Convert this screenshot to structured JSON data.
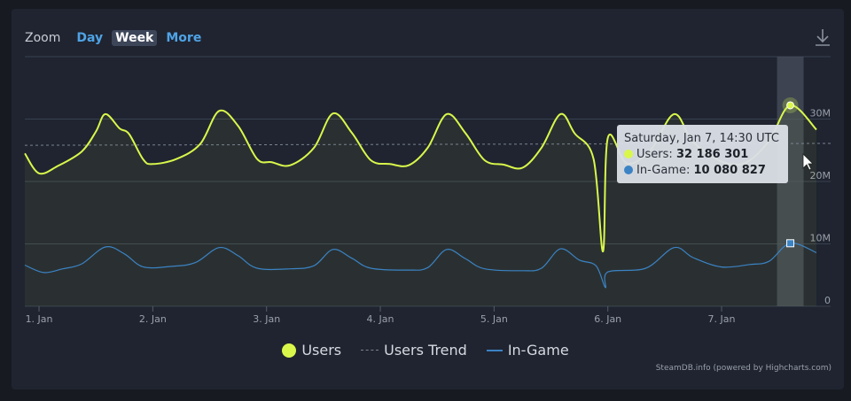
{
  "zoom": {
    "label": "Zoom",
    "buttons": [
      {
        "label": "Day",
        "active": false
      },
      {
        "label": "Week",
        "active": true
      },
      {
        "label": "More",
        "active": false
      }
    ]
  },
  "icons": {
    "download": "download-icon",
    "cursor": "mouse-pointer-icon"
  },
  "credits": "SteamDB.info (powered by Highcharts.com)",
  "tooltip": {
    "title": "Saturday, Jan 7, 14:30 UTC",
    "users_label": "Users:",
    "users_value": "32 186 301",
    "ingame_label": "In-Game:",
    "ingame_value": "10 080 827"
  },
  "colors": {
    "users": "#d9f74b",
    "ingame": "#3b83c5",
    "trend": "#7b8290"
  },
  "chart_data": {
    "type": "line",
    "x_axis": {
      "type": "datetime",
      "range": [
        "Dec 31 21:00",
        "Jan 7 23:00"
      ],
      "tick_labels": [
        "1. Jan",
        "2. Jan",
        "3. Jan",
        "4. Jan",
        "5. Jan",
        "6. Jan",
        "7. Jan"
      ]
    },
    "y_axis": {
      "min": 0,
      "max": 40000000,
      "ticks": [
        0,
        10000000,
        20000000,
        30000000
      ],
      "tick_labels": [
        "0",
        "10M",
        "20M",
        "30M"
      ]
    },
    "grid": true,
    "legend_position": "bottom",
    "series": [
      {
        "name": "Users",
        "points": [
          [
            "Dec 31 21:00",
            24.5
          ],
          [
            "Jan 1 00:00",
            21.3
          ],
          [
            "Jan 1 04:00",
            22.5
          ],
          [
            "Jan 1 09:00",
            24.8
          ],
          [
            "Jan 1 12:00",
            28.0
          ],
          [
            "Jan 1 14:00",
            30.8
          ],
          [
            "Jan 1 17:00",
            28.5
          ],
          [
            "Jan 1 19:00",
            27.6
          ],
          [
            "Jan 1 22:00",
            23.5
          ],
          [
            "Jan 2 00:00",
            22.8
          ],
          [
            "Jan 2 05:00",
            23.6
          ],
          [
            "Jan 2 10:00",
            26.0
          ],
          [
            "Jan 2 14:00",
            31.3
          ],
          [
            "Jan 2 18:00",
            28.9
          ],
          [
            "Jan 2 22:00",
            23.6
          ],
          [
            "Jan 3 01:00",
            23.1
          ],
          [
            "Jan 3 05:00",
            22.6
          ],
          [
            "Jan 3 10:00",
            25.4
          ],
          [
            "Jan 3 14:00",
            30.9
          ],
          [
            "Jan 3 18:00",
            27.8
          ],
          [
            "Jan 3 22:00",
            23.4
          ],
          [
            "Jan 4 02:00",
            22.8
          ],
          [
            "Jan 4 06:00",
            22.6
          ],
          [
            "Jan 4 10:00",
            25.4
          ],
          [
            "Jan 4 14:00",
            30.8
          ],
          [
            "Jan 4 18:00",
            27.7
          ],
          [
            "Jan 4 22:00",
            23.4
          ],
          [
            "Jan 5 02:00",
            22.7
          ],
          [
            "Jan 5 06:00",
            22.2
          ],
          [
            "Jan 5 10:00",
            25.4
          ],
          [
            "Jan 5 14:00",
            30.8
          ],
          [
            "Jan 5 17:00",
            27.7
          ],
          [
            "Jan 5 21:00",
            23.6
          ],
          [
            "Jan 5 23:00",
            8.8
          ],
          [
            "Jan 6 00:00",
            27.0
          ],
          [
            "Jan 6 04:00",
            22.9
          ],
          [
            "Jan 6 09:00",
            25.0
          ],
          [
            "Jan 6 14:00",
            30.8
          ],
          [
            "Jan 6 18:00",
            26.3
          ],
          [
            "Jan 7 00:00",
            23.2
          ],
          [
            "Jan 7 05:00",
            23.0
          ],
          [
            "Jan 7 10:00",
            26.5
          ],
          [
            "Jan 7 14:30",
            32.2
          ],
          [
            "Jan 7 20:00",
            28.3
          ]
        ]
      },
      {
        "name": "Users Trend",
        "points": [
          [
            "Dec 31 21:00",
            25.8
          ],
          [
            "Jan 7 23:00",
            26.1
          ]
        ]
      },
      {
        "name": "In-Game",
        "points": [
          [
            "Dec 31 21:00",
            6.6
          ],
          [
            "Jan 1 01:00",
            5.4
          ],
          [
            "Jan 1 05:00",
            6.0
          ],
          [
            "Jan 1 09:00",
            6.8
          ],
          [
            "Jan 1 14:00",
            9.5
          ],
          [
            "Jan 1 18:00",
            8.4
          ],
          [
            "Jan 1 22:00",
            6.3
          ],
          [
            "Jan 2 04:00",
            6.4
          ],
          [
            "Jan 2 09:00",
            7.0
          ],
          [
            "Jan 2 14:00",
            9.4
          ],
          [
            "Jan 2 18:00",
            8.1
          ],
          [
            "Jan 2 22:00",
            6.1
          ],
          [
            "Jan 3 05:00",
            6.0
          ],
          [
            "Jan 3 10:00",
            6.5
          ],
          [
            "Jan 3 14:00",
            9.1
          ],
          [
            "Jan 3 18:00",
            7.7
          ],
          [
            "Jan 3 22:00",
            6.1
          ],
          [
            "Jan 4 06:00",
            5.8
          ],
          [
            "Jan 4 10:00",
            6.2
          ],
          [
            "Jan 4 14:00",
            9.1
          ],
          [
            "Jan 4 18:00",
            7.6
          ],
          [
            "Jan 4 22:00",
            6.0
          ],
          [
            "Jan 5 06:00",
            5.7
          ],
          [
            "Jan 5 10:00",
            6.1
          ],
          [
            "Jan 5 14:00",
            9.2
          ],
          [
            "Jan 5 18:00",
            7.4
          ],
          [
            "Jan 5 21:30",
            6.5
          ],
          [
            "Jan 5 23:30",
            3.0
          ],
          [
            "Jan 6 00:00",
            5.5
          ],
          [
            "Jan 6 08:00",
            6.1
          ],
          [
            "Jan 6 14:00",
            9.4
          ],
          [
            "Jan 6 18:00",
            7.8
          ],
          [
            "Jan 7 00:00",
            6.3
          ],
          [
            "Jan 7 06:00",
            6.7
          ],
          [
            "Jan 7 10:00",
            7.2
          ],
          [
            "Jan 7 14:30",
            10.1
          ],
          [
            "Jan 7 20:00",
            8.6
          ]
        ]
      }
    ],
    "values_unit": "millions",
    "highlighted_point": "Jan 7 14:30"
  }
}
